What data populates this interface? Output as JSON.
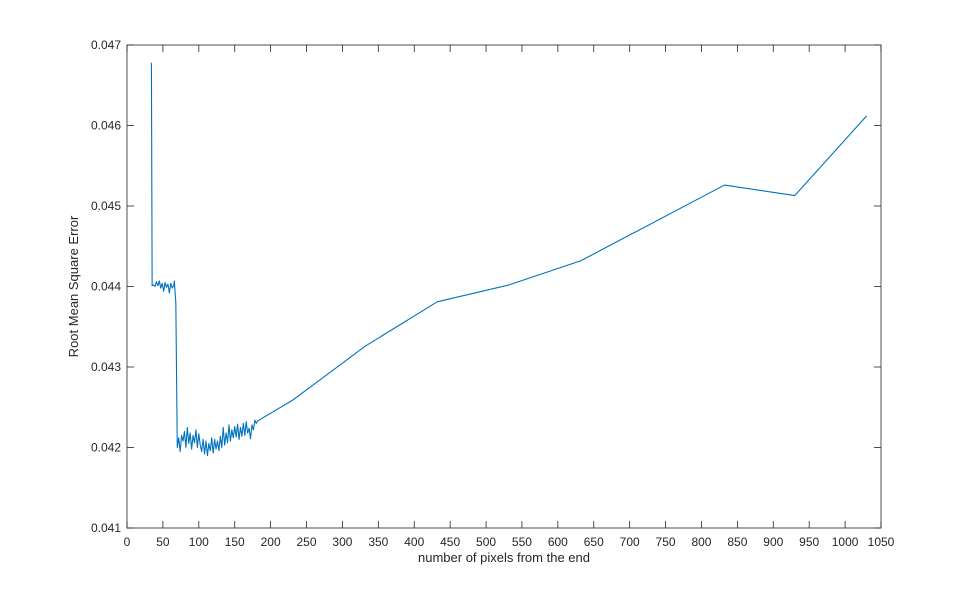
{
  "chart_data": {
    "type": "line",
    "title": "",
    "xlabel": "number of pixels from the end",
    "ylabel": "Root Mean Square Error",
    "xlim": [
      0,
      1050
    ],
    "ylim": [
      0.041,
      0.047
    ],
    "x_ticks": [
      0,
      50,
      100,
      150,
      200,
      250,
      300,
      350,
      400,
      450,
      500,
      550,
      600,
      650,
      700,
      750,
      800,
      850,
      900,
      950,
      1000,
      1050
    ],
    "x_tick_labels": [
      "0",
      "50",
      "100",
      "150",
      "200",
      "250",
      "300",
      "350",
      "400",
      "450",
      "500",
      "550",
      "600",
      "650",
      "700",
      "750",
      "800",
      "850",
      "900",
      "950",
      "1000",
      "1050"
    ],
    "y_ticks": [
      0.041,
      0.042,
      0.043,
      0.044,
      0.045,
      0.046,
      0.047
    ],
    "y_tick_labels": [
      "0.041",
      "0.042",
      "0.043",
      "0.044",
      "0.045",
      "0.046",
      "0.047"
    ],
    "grid": false,
    "box": true,
    "series": [
      {
        "color": "#0072BD",
        "points": [
          [
            34,
            0.04678
          ],
          [
            35,
            0.04401
          ],
          [
            37,
            0.04402
          ],
          [
            39,
            0.044
          ],
          [
            41,
            0.04406
          ],
          [
            43,
            0.04401
          ],
          [
            45,
            0.04407
          ],
          [
            47,
            0.04398
          ],
          [
            49,
            0.04404
          ],
          [
            51,
            0.04394
          ],
          [
            53,
            0.04405
          ],
          [
            55,
            0.04399
          ],
          [
            57,
            0.04403
          ],
          [
            59,
            0.04392
          ],
          [
            61,
            0.04404
          ],
          [
            63,
            0.04398
          ],
          [
            65,
            0.04401
          ],
          [
            66,
            0.04407
          ],
          [
            67,
            0.04392
          ],
          [
            68,
            0.0438
          ],
          [
            70,
            0.042
          ],
          [
            72,
            0.04212
          ],
          [
            74,
            0.04195
          ],
          [
            76,
            0.04215
          ],
          [
            78,
            0.04208
          ],
          [
            80,
            0.0422
          ],
          [
            82,
            0.042
          ],
          [
            84,
            0.04225
          ],
          [
            86,
            0.04205
          ],
          [
            88,
            0.04218
          ],
          [
            90,
            0.04198
          ],
          [
            92,
            0.04215
          ],
          [
            94,
            0.04206
          ],
          [
            96,
            0.04222
          ],
          [
            98,
            0.042
          ],
          [
            100,
            0.04217
          ],
          [
            102,
            0.04203
          ],
          [
            104,
            0.04195
          ],
          [
            106,
            0.0421
          ],
          [
            108,
            0.04192
          ],
          [
            110,
            0.04208
          ],
          [
            112,
            0.0419
          ],
          [
            114,
            0.04205
          ],
          [
            116,
            0.04196
          ],
          [
            118,
            0.04212
          ],
          [
            120,
            0.04193
          ],
          [
            122,
            0.0421
          ],
          [
            124,
            0.04198
          ],
          [
            126,
            0.04208
          ],
          [
            128,
            0.04196
          ],
          [
            130,
            0.04214
          ],
          [
            132,
            0.042
          ],
          [
            134,
            0.04225
          ],
          [
            136,
            0.04203
          ],
          [
            138,
            0.04218
          ],
          [
            140,
            0.04206
          ],
          [
            142,
            0.04228
          ],
          [
            144,
            0.04208
          ],
          [
            146,
            0.04222
          ],
          [
            148,
            0.04212
          ],
          [
            150,
            0.04226
          ],
          [
            152,
            0.04213
          ],
          [
            154,
            0.04229
          ],
          [
            156,
            0.0421
          ],
          [
            158,
            0.04225
          ],
          [
            160,
            0.04214
          ],
          [
            162,
            0.0423
          ],
          [
            164,
            0.04215
          ],
          [
            166,
            0.04232
          ],
          [
            168,
            0.04218
          ],
          [
            170,
            0.04224
          ],
          [
            172,
            0.04211
          ],
          [
            174,
            0.04228
          ],
          [
            176,
            0.04222
          ],
          [
            178,
            0.04234
          ],
          [
            180,
            0.0423
          ],
          [
            182,
            0.04233
          ],
          [
            231,
            0.04259
          ],
          [
            332,
            0.04326
          ],
          [
            432,
            0.04381
          ],
          [
            532,
            0.04402
          ],
          [
            632,
            0.04432
          ],
          [
            832,
            0.04526
          ],
          [
            930,
            0.04513
          ],
          [
            1030,
            0.04612
          ]
        ]
      }
    ]
  }
}
